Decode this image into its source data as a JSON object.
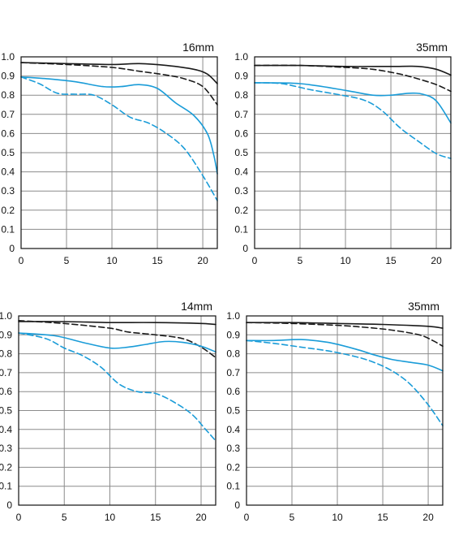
{
  "chart_data": [
    {
      "type": "line",
      "title": "16mm",
      "xlim": [
        0,
        21.6
      ],
      "ylim": [
        0,
        1.0
      ],
      "xticks": [
        "0",
        "5",
        "10",
        "15",
        "20"
      ],
      "yticks": [
        "0",
        "0.1",
        "0.2",
        "0.3",
        "0.4",
        "0.5",
        "0.6",
        "0.7",
        "0.8",
        "0.9",
        "1.0"
      ],
      "grid": true,
      "colors": {
        "black": "#1a1a1a",
        "blue": "#1a9cd8"
      },
      "series": [
        {
          "color": "black",
          "dash": false,
          "points": [
            [
              0,
              0.97
            ],
            [
              5,
              0.965
            ],
            [
              10,
              0.96
            ],
            [
              13,
              0.965
            ],
            [
              16,
              0.955
            ],
            [
              19,
              0.935
            ],
            [
              20.5,
              0.91
            ],
            [
              21.6,
              0.86
            ]
          ]
        },
        {
          "color": "black",
          "dash": true,
          "points": [
            [
              0,
              0.97
            ],
            [
              5,
              0.96
            ],
            [
              10,
              0.945
            ],
            [
              13,
              0.925
            ],
            [
              16,
              0.905
            ],
            [
              18,
              0.885
            ],
            [
              20,
              0.845
            ],
            [
              21.6,
              0.75
            ]
          ]
        },
        {
          "color": "blue",
          "dash": false,
          "points": [
            [
              0,
              0.895
            ],
            [
              3,
              0.885
            ],
            [
              6,
              0.87
            ],
            [
              9,
              0.845
            ],
            [
              11,
              0.845
            ],
            [
              13,
              0.855
            ],
            [
              15,
              0.835
            ],
            [
              17,
              0.76
            ],
            [
              19,
              0.695
            ],
            [
              20.5,
              0.6
            ],
            [
              21.2,
              0.49
            ],
            [
              21.6,
              0.39
            ]
          ]
        },
        {
          "color": "blue",
          "dash": true,
          "points": [
            [
              0,
              0.895
            ],
            [
              2,
              0.86
            ],
            [
              4,
              0.81
            ],
            [
              6,
              0.805
            ],
            [
              8,
              0.8
            ],
            [
              10,
              0.75
            ],
            [
              12,
              0.685
            ],
            [
              14,
              0.655
            ],
            [
              16,
              0.6
            ],
            [
              18,
              0.52
            ],
            [
              20,
              0.38
            ],
            [
              21.6,
              0.25
            ]
          ]
        }
      ]
    },
    {
      "type": "line",
      "title": "35mm",
      "xlim": [
        0,
        21.6
      ],
      "ylim": [
        0,
        1.0
      ],
      "xticks": [
        "0",
        "5",
        "10",
        "15",
        "20"
      ],
      "yticks": [
        "0",
        "0.1",
        "0.2",
        "0.3",
        "0.4",
        "0.5",
        "0.6",
        "0.7",
        "0.8",
        "0.9",
        "1.0"
      ],
      "grid": true,
      "colors": {
        "black": "#1a1a1a",
        "blue": "#1a9cd8"
      },
      "series": [
        {
          "color": "black",
          "dash": false,
          "points": [
            [
              0,
              0.955
            ],
            [
              5,
              0.955
            ],
            [
              10,
              0.95
            ],
            [
              15,
              0.95
            ],
            [
              18,
              0.95
            ],
            [
              20,
              0.935
            ],
            [
              21.6,
              0.905
            ]
          ]
        },
        {
          "color": "black",
          "dash": true,
          "points": [
            [
              0,
              0.955
            ],
            [
              5,
              0.955
            ],
            [
              10,
              0.945
            ],
            [
              13,
              0.935
            ],
            [
              16,
              0.91
            ],
            [
              18,
              0.885
            ],
            [
              20,
              0.855
            ],
            [
              21.6,
              0.82
            ]
          ]
        },
        {
          "color": "blue",
          "dash": false,
          "points": [
            [
              0,
              0.865
            ],
            [
              5,
              0.86
            ],
            [
              10,
              0.825
            ],
            [
              13,
              0.8
            ],
            [
              15,
              0.8
            ],
            [
              17,
              0.81
            ],
            [
              18.5,
              0.805
            ],
            [
              20,
              0.77
            ],
            [
              21.6,
              0.655
            ]
          ]
        },
        {
          "color": "blue",
          "dash": true,
          "points": [
            [
              0,
              0.865
            ],
            [
              3,
              0.86
            ],
            [
              6,
              0.83
            ],
            [
              9,
              0.805
            ],
            [
              12,
              0.775
            ],
            [
              14,
              0.72
            ],
            [
              16,
              0.63
            ],
            [
              18,
              0.56
            ],
            [
              20,
              0.495
            ],
            [
              21.6,
              0.47
            ]
          ]
        }
      ]
    },
    {
      "type": "line",
      "title": "14mm",
      "xlim": [
        0,
        21.6
      ],
      "ylim": [
        0,
        1.0
      ],
      "xticks": [
        "0",
        "5",
        "10",
        "15",
        "20"
      ],
      "yticks": [
        "0",
        "0.1",
        "0.2",
        "0.3",
        "0.4",
        "0.5",
        "0.6",
        "0.7",
        "0.8",
        "0.9",
        "1.0"
      ],
      "grid": true,
      "colors": {
        "black": "#1a1a1a",
        "blue": "#1a9cd8"
      },
      "series": [
        {
          "color": "black",
          "dash": false,
          "points": [
            [
              0,
              0.97
            ],
            [
              5,
              0.97
            ],
            [
              10,
              0.965
            ],
            [
              15,
              0.965
            ],
            [
              20,
              0.96
            ],
            [
              21.6,
              0.955
            ]
          ]
        },
        {
          "color": "black",
          "dash": true,
          "points": [
            [
              0,
              0.975
            ],
            [
              5,
              0.96
            ],
            [
              10,
              0.935
            ],
            [
              12,
              0.915
            ],
            [
              15,
              0.9
            ],
            [
              18,
              0.88
            ],
            [
              20,
              0.835
            ],
            [
              21.6,
              0.78
            ]
          ]
        },
        {
          "color": "blue",
          "dash": false,
          "points": [
            [
              0,
              0.91
            ],
            [
              4,
              0.895
            ],
            [
              7,
              0.86
            ],
            [
              10,
              0.83
            ],
            [
              12,
              0.835
            ],
            [
              14,
              0.85
            ],
            [
              16,
              0.865
            ],
            [
              18,
              0.86
            ],
            [
              20,
              0.84
            ],
            [
              21.6,
              0.81
            ]
          ]
        },
        {
          "color": "blue",
          "dash": true,
          "points": [
            [
              0,
              0.91
            ],
            [
              3,
              0.88
            ],
            [
              5,
              0.83
            ],
            [
              7,
              0.79
            ],
            [
              9,
              0.73
            ],
            [
              11,
              0.64
            ],
            [
              13,
              0.6
            ],
            [
              15,
              0.59
            ],
            [
              17,
              0.545
            ],
            [
              19,
              0.48
            ],
            [
              20.5,
              0.4
            ],
            [
              21.6,
              0.34
            ]
          ]
        }
      ]
    },
    {
      "type": "line",
      "title": "35mm",
      "xlim": [
        0,
        21.6
      ],
      "ylim": [
        0,
        1.0
      ],
      "xticks": [
        "0",
        "5",
        "10",
        "15",
        "20"
      ],
      "yticks": [
        "0",
        "0.1",
        "0.2",
        "0.3",
        "0.4",
        "0.5",
        "0.6",
        "0.7",
        "0.8",
        "0.9",
        "1.0"
      ],
      "grid": true,
      "colors": {
        "black": "#1a1a1a",
        "blue": "#1a9cd8"
      },
      "series": [
        {
          "color": "black",
          "dash": false,
          "points": [
            [
              0,
              0.965
            ],
            [
              5,
              0.965
            ],
            [
              10,
              0.96
            ],
            [
              15,
              0.955
            ],
            [
              20,
              0.945
            ],
            [
              21.6,
              0.935
            ]
          ]
        },
        {
          "color": "black",
          "dash": true,
          "points": [
            [
              0,
              0.965
            ],
            [
              5,
              0.96
            ],
            [
              10,
              0.95
            ],
            [
              13,
              0.94
            ],
            [
              16,
              0.925
            ],
            [
              19,
              0.9
            ],
            [
              20.5,
              0.87
            ],
            [
              21.6,
              0.84
            ]
          ]
        },
        {
          "color": "blue",
          "dash": false,
          "points": [
            [
              0,
              0.87
            ],
            [
              3,
              0.87
            ],
            [
              6,
              0.875
            ],
            [
              9,
              0.86
            ],
            [
              12,
              0.825
            ],
            [
              14,
              0.795
            ],
            [
              16,
              0.77
            ],
            [
              18,
              0.755
            ],
            [
              20,
              0.74
            ],
            [
              21.6,
              0.71
            ]
          ]
        },
        {
          "color": "blue",
          "dash": true,
          "points": [
            [
              0,
              0.87
            ],
            [
              3,
              0.855
            ],
            [
              6,
              0.835
            ],
            [
              9,
              0.815
            ],
            [
              12,
              0.785
            ],
            [
              14,
              0.755
            ],
            [
              16,
              0.71
            ],
            [
              18,
              0.64
            ],
            [
              20,
              0.53
            ],
            [
              21.6,
              0.42
            ]
          ]
        }
      ]
    }
  ]
}
